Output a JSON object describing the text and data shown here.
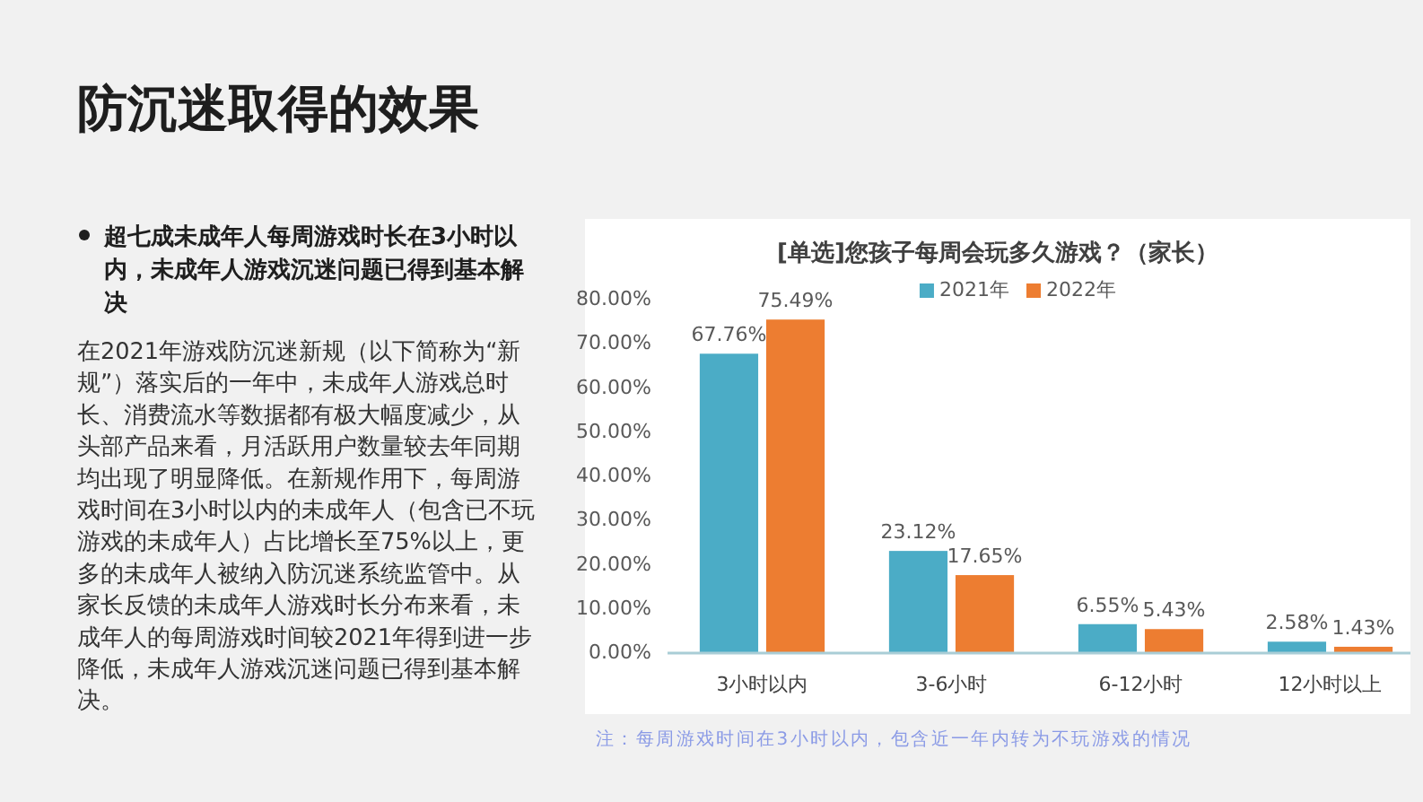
{
  "chart_data": {
    "type": "bar",
    "title": "防沉迷取得的效果",
    "subtitle": "[单选]您孩子每周会玩多久游戏？（家长）",
    "annotations": [
      "超七成未成年人每周游戏时长在3小时以内，未成年人游戏沉迷问题已得到基本解决",
      "在2021年游戏防沉迷新规（以下简称为“新规”）落实后的一年中，未成年人游戏总时长、消费流水等数据都有极大幅度减少，从头部产品来看，月活跃用户数量较去年同期均出现了明显降低。在新规作用下，每周游戏时间在3小时以内的未成年人（包含已不玩游戏的未成年人）占比增长至75%以上，更多的未成年人被纳入防沉迷系统监管中。从家长反馈的未成年人游戏时长分布来看，未成年人的每周游戏时间较2021年得到进一步降低，未成年人游戏沉迷问题已得到基本解决。",
      "注：每周游戏时间在3小时以内，包含近一年内转为不玩游戏的情况"
    ],
    "categories": [
      "3小时以内",
      "3-6小时",
      "6-12小时",
      "12小时以上"
    ],
    "series": [
      {
        "name": "2021年",
        "color": "#4bacc6",
        "values": [
          67.76,
          23.12,
          6.55,
          2.58
        ],
        "value_labels": [
          "67.76%",
          "23.12%",
          "6.55%",
          "2.58%"
        ]
      },
      {
        "name": "2022年",
        "color": "#ed7d31",
        "values": [
          75.49,
          17.65,
          5.43,
          1.43
        ],
        "value_labels": [
          "75.49%",
          "17.65%",
          "5.43%",
          "1.43%"
        ]
      }
    ],
    "ylim": [
      0,
      80
    ],
    "yticks": [
      {
        "value": 0,
        "label": "0.00%"
      },
      {
        "value": 10,
        "label": "10.00%"
      },
      {
        "value": 20,
        "label": "20.00%"
      },
      {
        "value": 30,
        "label": "30.00%"
      },
      {
        "value": 40,
        "label": "40.00%"
      },
      {
        "value": 50,
        "label": "50.00%"
      },
      {
        "value": 60,
        "label": "60.00%"
      },
      {
        "value": 70,
        "label": "70.00%"
      },
      {
        "value": 80,
        "label": "80.00%"
      }
    ],
    "legend": "top"
  }
}
